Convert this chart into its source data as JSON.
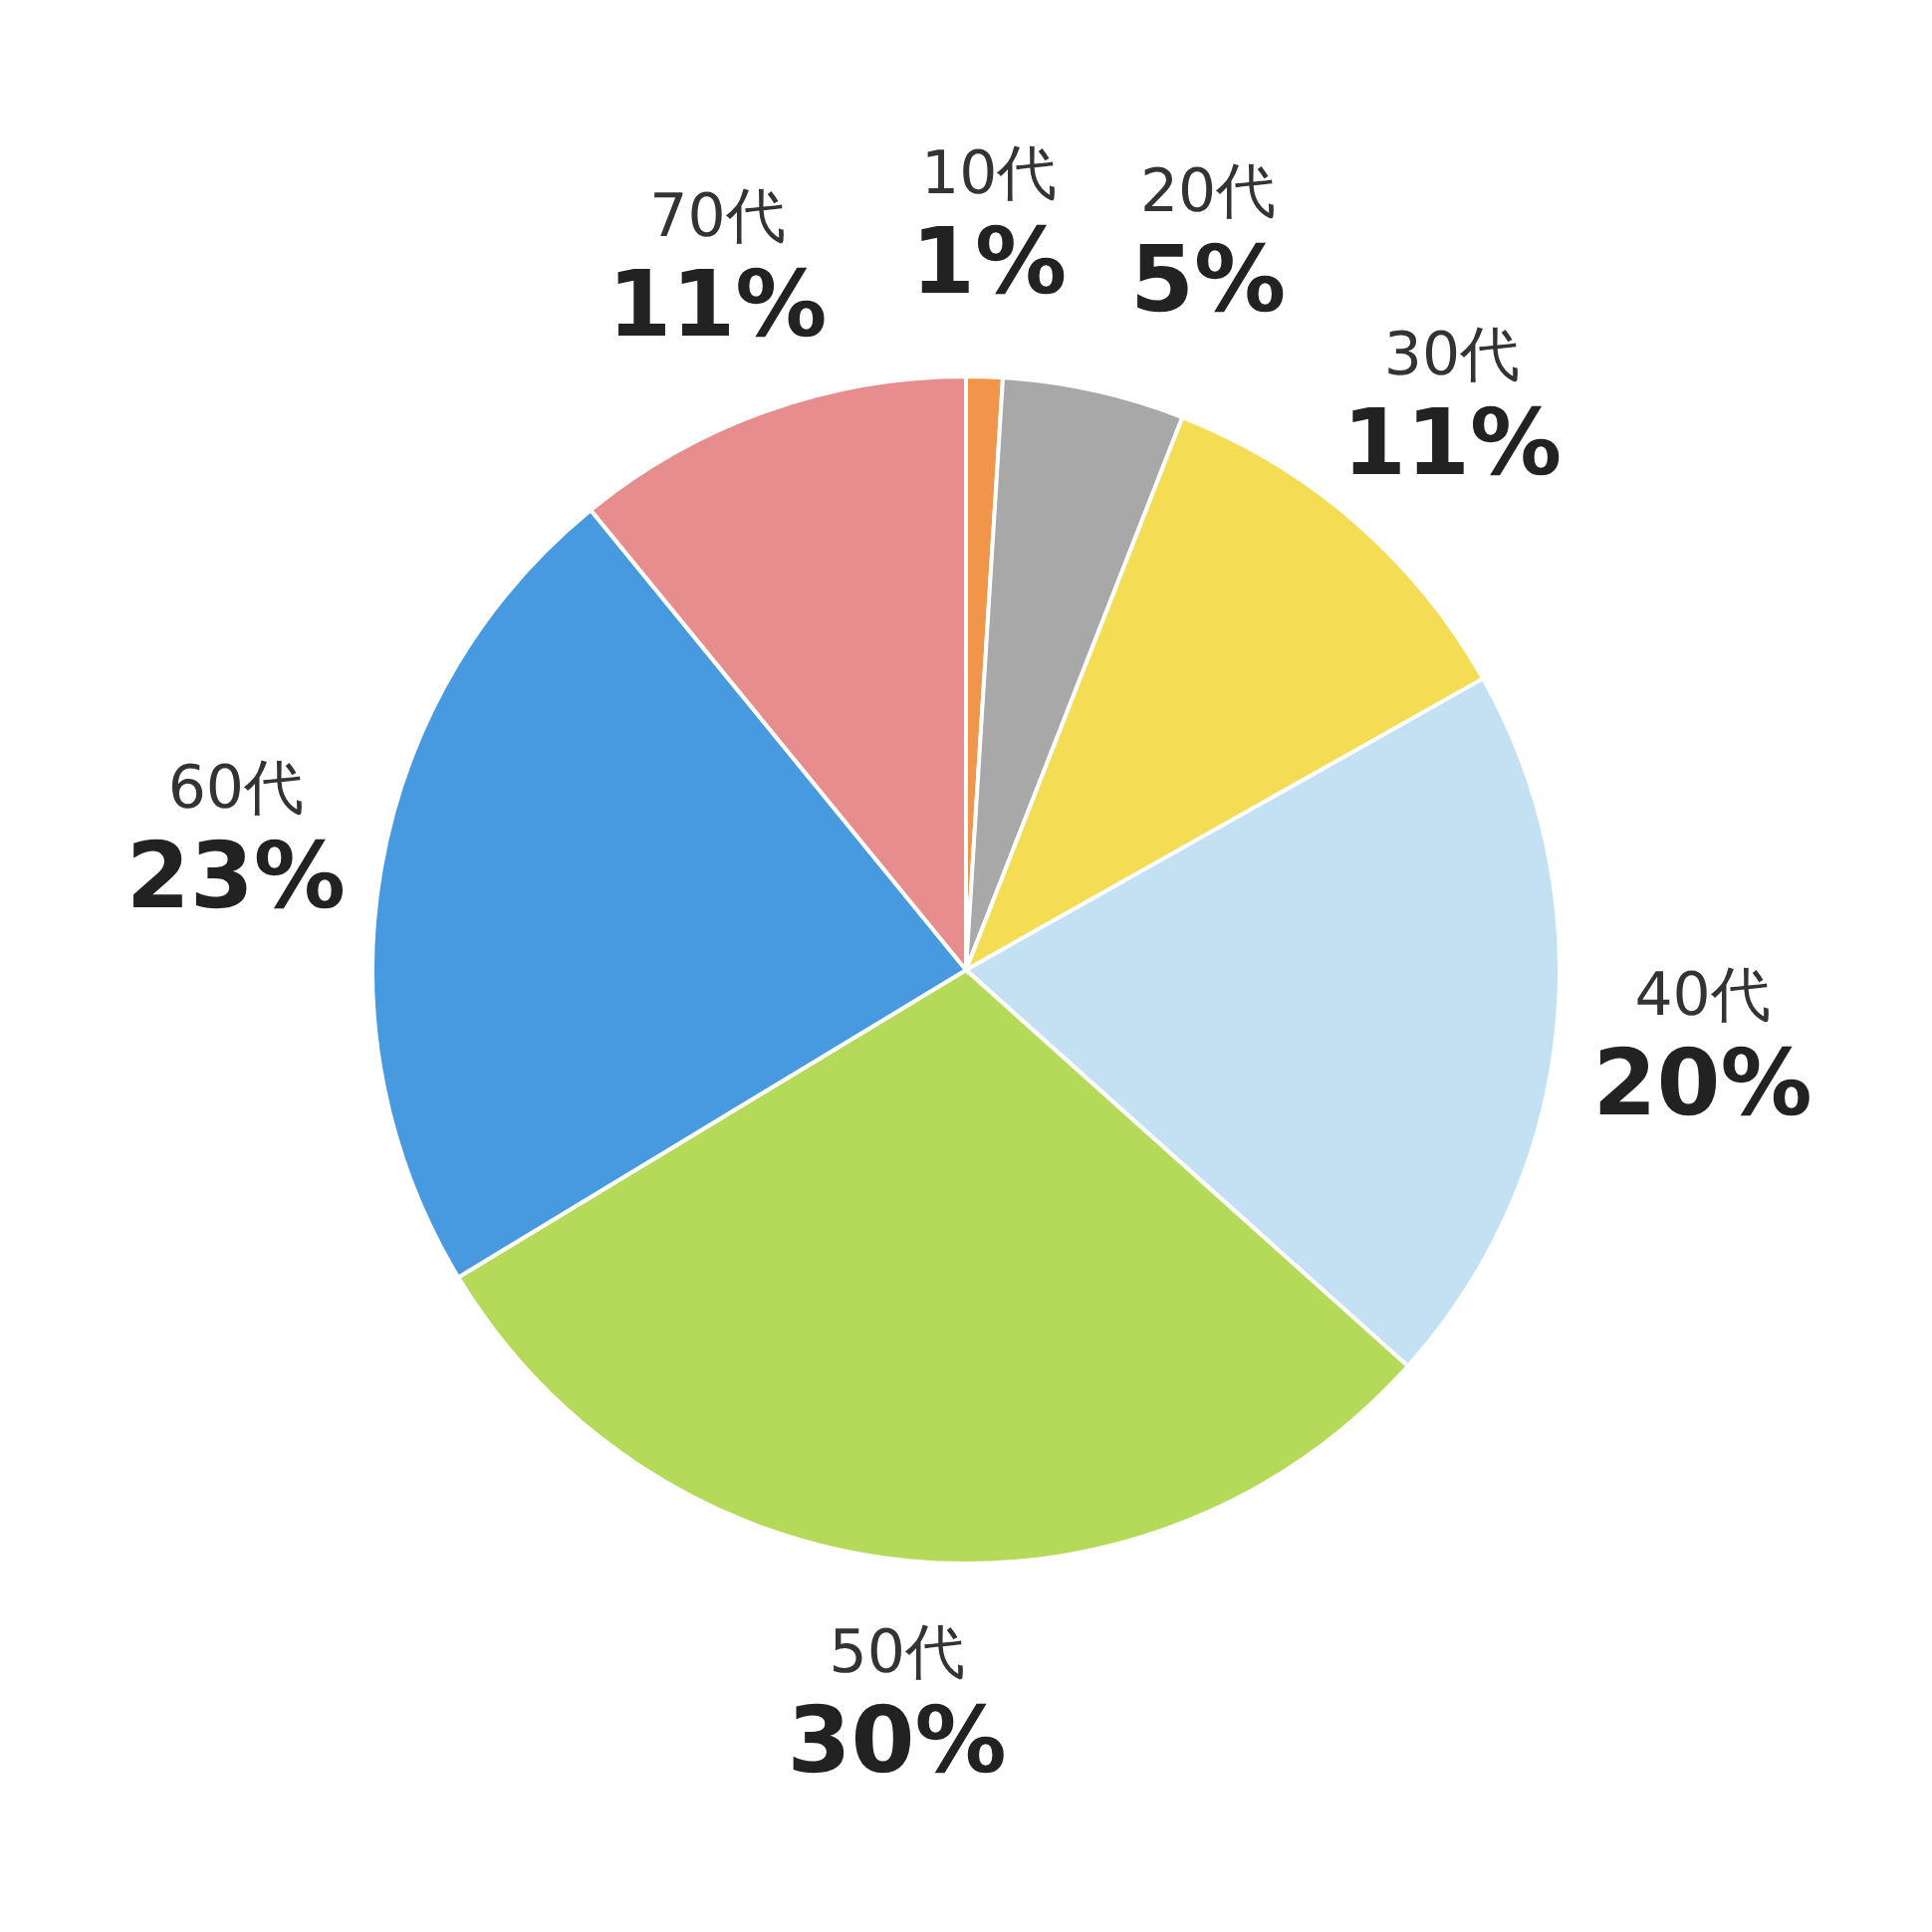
{
  "chart_data": {
    "type": "pie",
    "categories": [
      "10代",
      "20代",
      "30代",
      "40代",
      "50代",
      "60代",
      "70代"
    ],
    "values": [
      1,
      5,
      11,
      20,
      30,
      23,
      11
    ],
    "value_labels": [
      "1%",
      "5%",
      "11%",
      "20%",
      "30%",
      "23%",
      "11%"
    ],
    "colors": [
      "#f0954a",
      "#a8a8a8",
      "#f4dc55",
      "#c3e1f3",
      "#b5da5a",
      "#479adf",
      "#e88d8d"
    ]
  }
}
